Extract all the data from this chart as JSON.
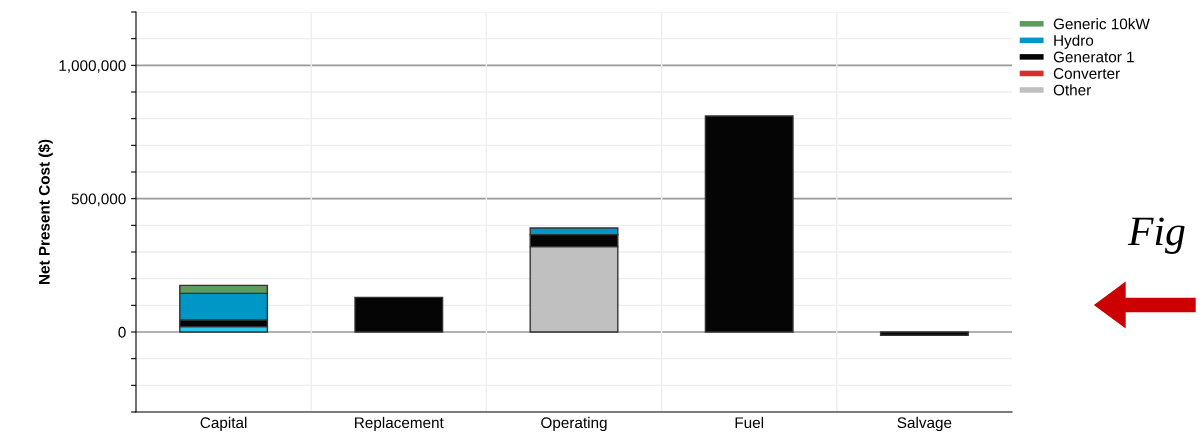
{
  "chart_data": {
    "type": "bar",
    "stacked": true,
    "ylabel": "Net Present Cost ($)",
    "categories": [
      "Capital",
      "Replacement",
      "Operating",
      "Fuel",
      "Salvage"
    ],
    "series": [
      {
        "name": "Other",
        "color": "#c0c0c0",
        "values": [
          0,
          0,
          320000,
          0,
          0
        ]
      },
      {
        "name": "Converter",
        "color": "#d62f2f",
        "values": [
          0,
          0,
          0,
          0,
          0
        ]
      },
      {
        "color": "#2ec8f0",
        "values": [
          20000,
          0,
          0,
          0,
          0
        ]
      },
      {
        "name": "Generator 1",
        "color": "#050505",
        "values": [
          25000,
          130000,
          45000,
          810000,
          -12000
        ]
      },
      {
        "name": "Hydro",
        "color": "#0096c8",
        "values": [
          100000,
          0,
          25000,
          0,
          0
        ]
      },
      {
        "name": "Generic 10kW",
        "color": "#5f9a5f",
        "values": [
          30000,
          0,
          0,
          0,
          0
        ]
      }
    ],
    "ylim": [
      -300000,
      1200000
    ],
    "yticks": [
      {
        "value": -300000,
        "label": null
      },
      {
        "value": -200000,
        "label": null
      },
      {
        "value": -100000,
        "label": null
      },
      {
        "value": 0,
        "label": "0"
      },
      {
        "value": 100000,
        "label": null
      },
      {
        "value": 200000,
        "label": null
      },
      {
        "value": 300000,
        "label": null
      },
      {
        "value": 400000,
        "label": null
      },
      {
        "value": 500000,
        "label": "500,000"
      },
      {
        "value": 600000,
        "label": null
      },
      {
        "value": 700000,
        "label": null
      },
      {
        "value": 800000,
        "label": null
      },
      {
        "value": 900000,
        "label": null
      },
      {
        "value": 1000000,
        "label": "1,000,000"
      },
      {
        "value": 1100000,
        "label": null
      },
      {
        "value": 1200000,
        "label": null
      }
    ],
    "grid": true,
    "legend": "top right",
    "annotations": [
      "Fig"
    ]
  }
}
